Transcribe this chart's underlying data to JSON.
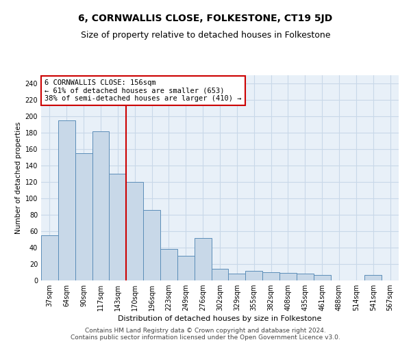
{
  "title": "6, CORNWALLIS CLOSE, FOLKESTONE, CT19 5JD",
  "subtitle": "Size of property relative to detached houses in Folkestone",
  "xlabel": "Distribution of detached houses by size in Folkestone",
  "ylabel": "Number of detached properties",
  "categories": [
    "37sqm",
    "64sqm",
    "90sqm",
    "117sqm",
    "143sqm",
    "170sqm",
    "196sqm",
    "223sqm",
    "249sqm",
    "276sqm",
    "302sqm",
    "329sqm",
    "355sqm",
    "382sqm",
    "408sqm",
    "435sqm",
    "461sqm",
    "488sqm",
    "514sqm",
    "541sqm",
    "567sqm"
  ],
  "values": [
    55,
    195,
    155,
    182,
    130,
    120,
    86,
    38,
    30,
    52,
    14,
    8,
    12,
    10,
    9,
    8,
    7,
    0,
    0,
    7,
    0
  ],
  "bar_color": "#c8d8e8",
  "bar_edge_color": "#5b8db8",
  "vline_color": "#cc0000",
  "vline_index": 4.5,
  "annotation_box_text": "6 CORNWALLIS CLOSE: 156sqm\n← 61% of detached houses are smaller (653)\n38% of semi-detached houses are larger (410) →",
  "annotation_box_edge_color": "#cc0000",
  "annotation_box_facecolor": "white",
  "ylim": [
    0,
    250
  ],
  "yticks": [
    0,
    20,
    40,
    60,
    80,
    100,
    120,
    140,
    160,
    180,
    200,
    220,
    240
  ],
  "grid_color": "#c8d8e8",
  "bg_color": "#e8f0f8",
  "footer1": "Contains HM Land Registry data © Crown copyright and database right 2024.",
  "footer2": "Contains public sector information licensed under the Open Government Licence v3.0.",
  "title_fontsize": 10,
  "subtitle_fontsize": 9,
  "xlabel_fontsize": 8,
  "ylabel_fontsize": 7.5,
  "tick_fontsize": 7,
  "annot_fontsize": 7.5,
  "footer_fontsize": 6.5
}
